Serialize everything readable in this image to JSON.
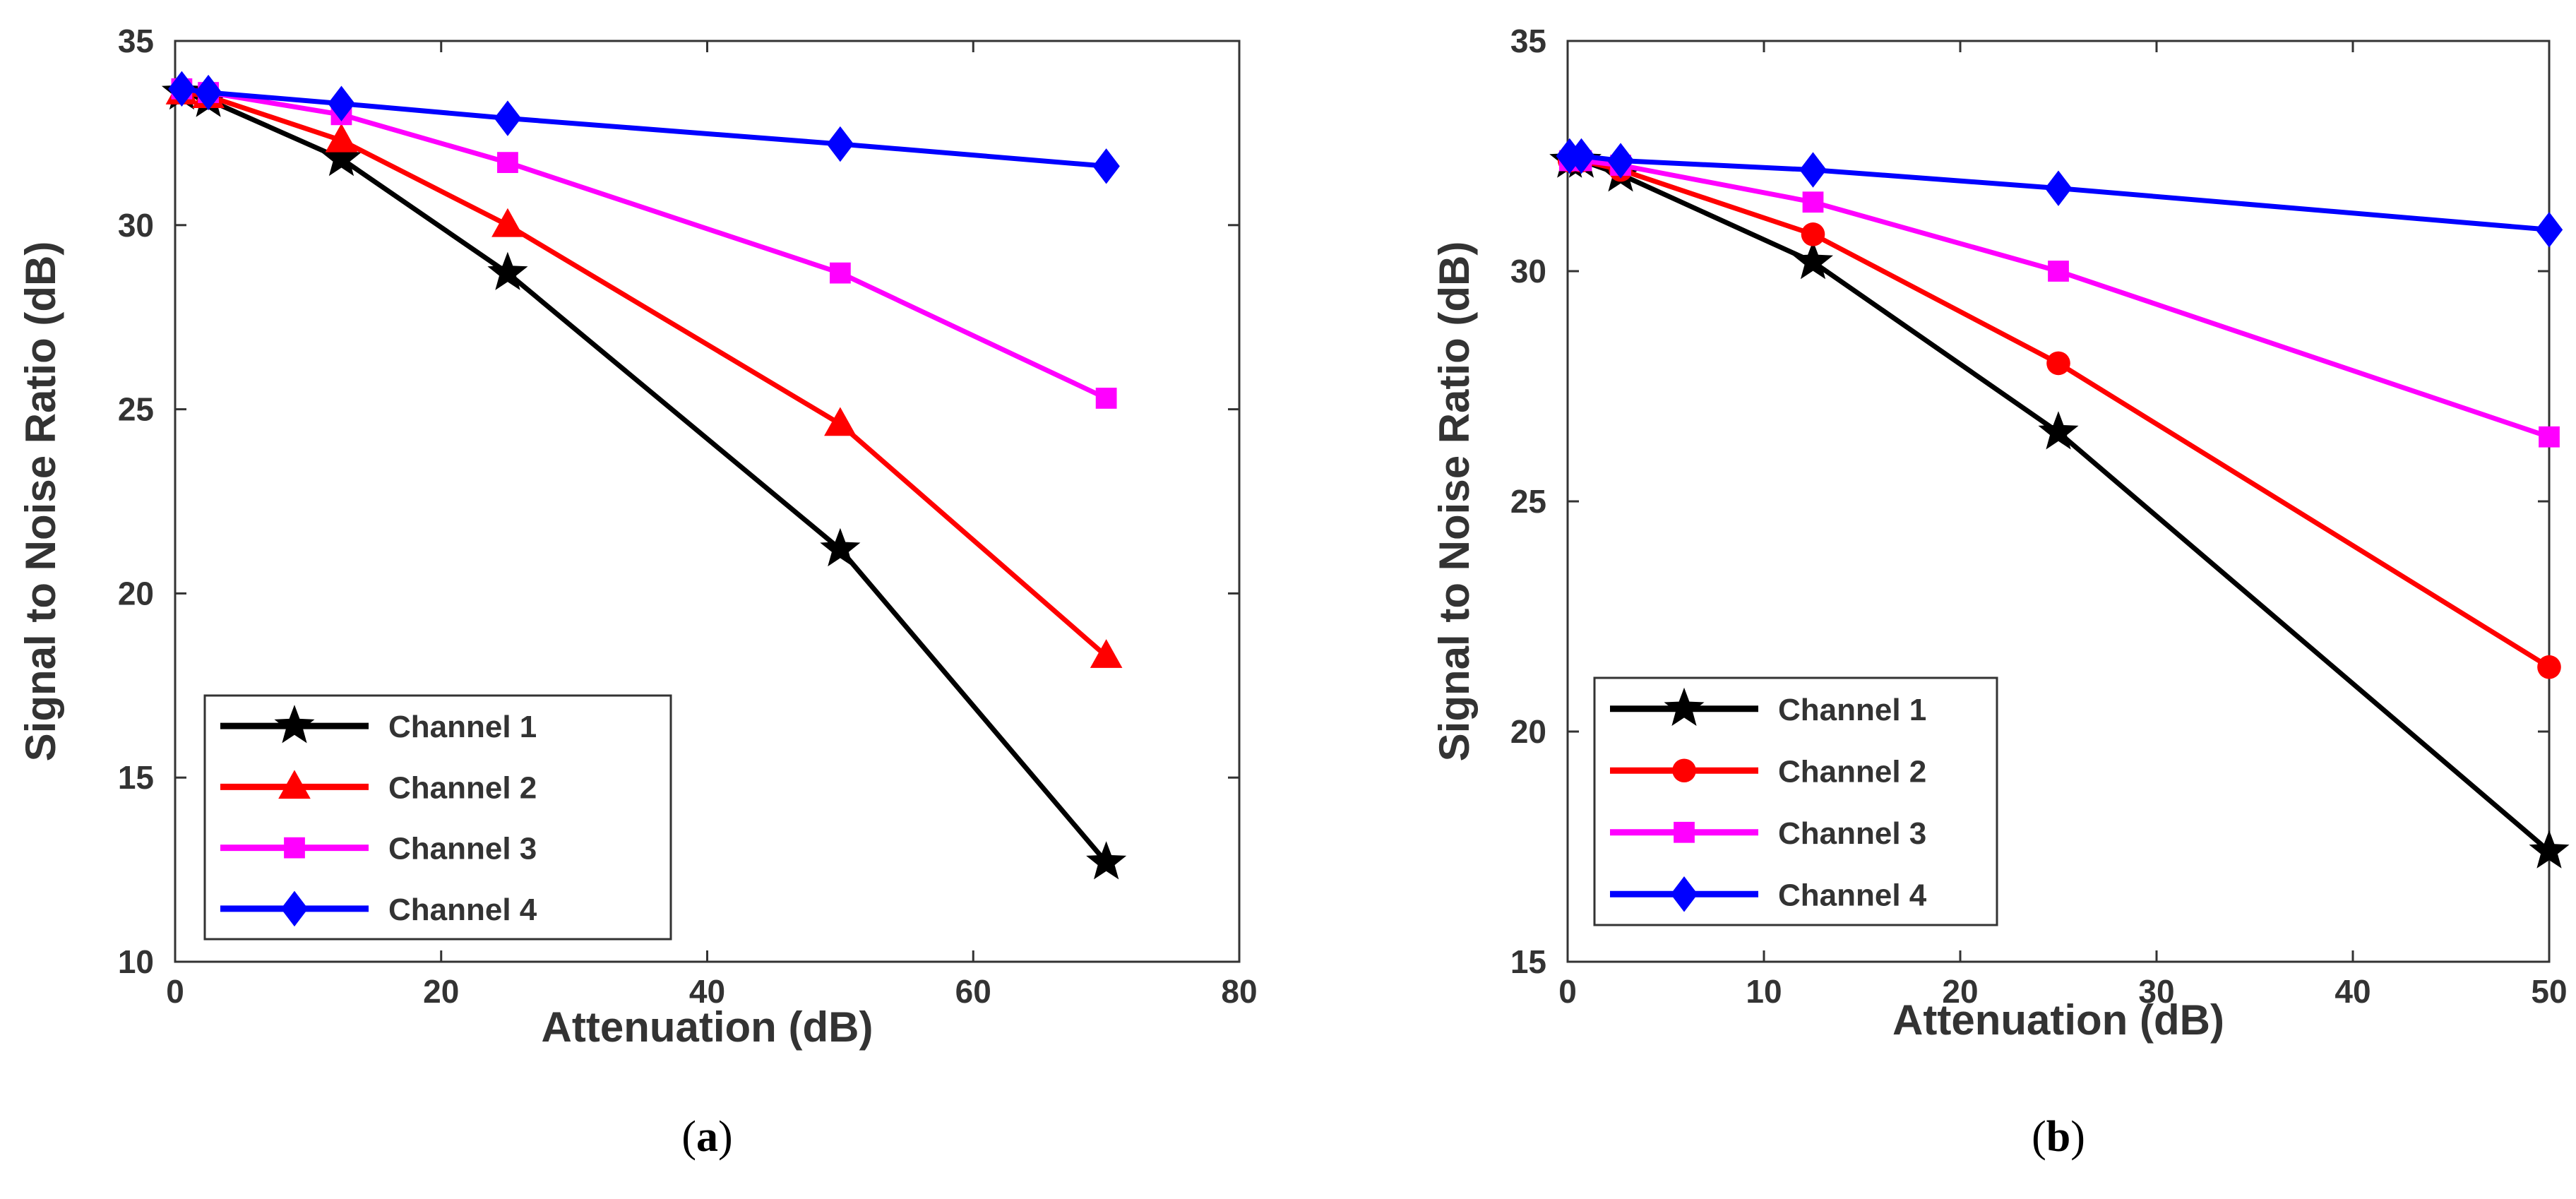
{
  "chart_data": [
    {
      "type": "line",
      "caption_open": "(",
      "caption_letter": "a",
      "caption_close": ")",
      "xlabel": "Attenuation (dB)",
      "ylabel": "Signal to Noise Ratio (dB)",
      "xlim": [
        0,
        80
      ],
      "ylim": [
        10,
        35
      ],
      "xticks": [
        "0",
        "20",
        "40",
        "60",
        "80"
      ],
      "yticks": [
        "10",
        "15",
        "20",
        "25",
        "30",
        "35"
      ],
      "grid": false,
      "legend_position": "bottom-left",
      "series": [
        {
          "name": "Channel 1",
          "color": "#000000",
          "marker": "star",
          "x": [
            0.5,
            2.5,
            12.5,
            25,
            50,
            70
          ],
          "y": [
            33.6,
            33.4,
            31.8,
            28.7,
            21.2,
            12.7
          ]
        },
        {
          "name": "Channel 2",
          "color": "#ff0000",
          "marker": "triangle",
          "x": [
            0.5,
            2.5,
            12.5,
            25,
            50,
            70
          ],
          "y": [
            33.6,
            33.5,
            32.3,
            30.0,
            24.6,
            18.3
          ]
        },
        {
          "name": "Channel 3",
          "color": "#ff00ff",
          "marker": "square",
          "x": [
            0.5,
            2.5,
            12.5,
            25,
            50,
            70
          ],
          "y": [
            33.7,
            33.6,
            33.0,
            31.7,
            28.7,
            25.3
          ]
        },
        {
          "name": "Channel 4",
          "color": "#0000ff",
          "marker": "diamond",
          "x": [
            0.5,
            2.5,
            12.5,
            25,
            50,
            70
          ],
          "y": [
            33.7,
            33.6,
            33.3,
            32.9,
            32.2,
            31.6
          ]
        }
      ]
    },
    {
      "type": "line",
      "caption_open": "(",
      "caption_letter": "b",
      "caption_close": ")",
      "xlabel": "Attenuation (dB)",
      "ylabel": "Signal to Noise Ratio (dB)",
      "xlim": [
        0,
        50
      ],
      "ylim": [
        15,
        35
      ],
      "xticks": [
        "0",
        "10",
        "20",
        "30",
        "40",
        "50"
      ],
      "yticks": [
        "15",
        "20",
        "25",
        "30",
        "35"
      ],
      "grid": false,
      "legend_position": "bottom-left",
      "series": [
        {
          "name": "Channel 1",
          "color": "#000000",
          "marker": "star",
          "x": [
            0.1,
            0.7,
            2.7,
            12.5,
            25,
            50
          ],
          "y": [
            32.4,
            32.4,
            32.1,
            30.2,
            26.5,
            17.4
          ]
        },
        {
          "name": "Channel 2",
          "color": "#ff0000",
          "marker": "circle",
          "x": [
            0.1,
            0.7,
            2.7,
            12.5,
            25,
            50
          ],
          "y": [
            32.4,
            32.4,
            32.2,
            30.8,
            28.0,
            21.4
          ]
        },
        {
          "name": "Channel 3",
          "color": "#ff00ff",
          "marker": "square",
          "x": [
            0.1,
            0.7,
            2.7,
            12.5,
            25,
            50
          ],
          "y": [
            32.4,
            32.4,
            32.3,
            31.5,
            30.0,
            26.4
          ]
        },
        {
          "name": "Channel 4",
          "color": "#0000ff",
          "marker": "diamond",
          "x": [
            0.1,
            0.7,
            2.7,
            12.5,
            25,
            50
          ],
          "y": [
            32.5,
            32.5,
            32.4,
            32.2,
            31.8,
            30.9
          ]
        }
      ]
    }
  ]
}
